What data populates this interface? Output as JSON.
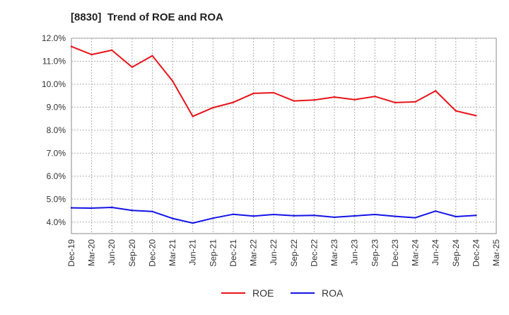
{
  "chart_data": {
    "type": "line",
    "title": "[8830]  Trend of ROE and ROA",
    "xlabel": "",
    "ylabel": "",
    "categories": [
      "Dec-19",
      "Mar-20",
      "Jun-20",
      "Sep-20",
      "Dec-20",
      "Mar-21",
      "Jun-21",
      "Sep-21",
      "Dec-21",
      "Mar-22",
      "Jun-22",
      "Sep-22",
      "Dec-22",
      "Mar-23",
      "Jun-23",
      "Sep-23",
      "Dec-23",
      "Mar-24",
      "Jun-24",
      "Sep-24",
      "Dec-24",
      "Mar-25"
    ],
    "ylim": [
      3.5,
      12.0
    ],
    "yticks": [
      4.0,
      5.0,
      6.0,
      7.0,
      8.0,
      9.0,
      10.0,
      11.0,
      12.0
    ],
    "ytick_labels": [
      "4.0%",
      "5.0%",
      "6.0%",
      "7.0%",
      "8.0%",
      "9.0%",
      "10.0%",
      "11.0%",
      "12.0%"
    ],
    "grid": true,
    "legend_position": "bottom-center",
    "series": [
      {
        "name": "ROE",
        "color": "#e8141a",
        "values": [
          11.64,
          11.29,
          11.48,
          10.74,
          11.24,
          10.14,
          8.6,
          8.98,
          9.21,
          9.6,
          9.63,
          9.27,
          9.31,
          9.44,
          9.33,
          9.47,
          9.2,
          9.23,
          9.71,
          8.84,
          8.63,
          null
        ]
      },
      {
        "name": "ROA",
        "color": "#1414e6",
        "values": [
          4.62,
          4.61,
          4.64,
          4.51,
          4.46,
          4.16,
          3.96,
          4.17,
          4.34,
          4.26,
          4.33,
          4.28,
          4.29,
          4.21,
          4.27,
          4.33,
          4.25,
          4.19,
          4.48,
          4.24,
          4.29,
          null
        ]
      }
    ]
  }
}
